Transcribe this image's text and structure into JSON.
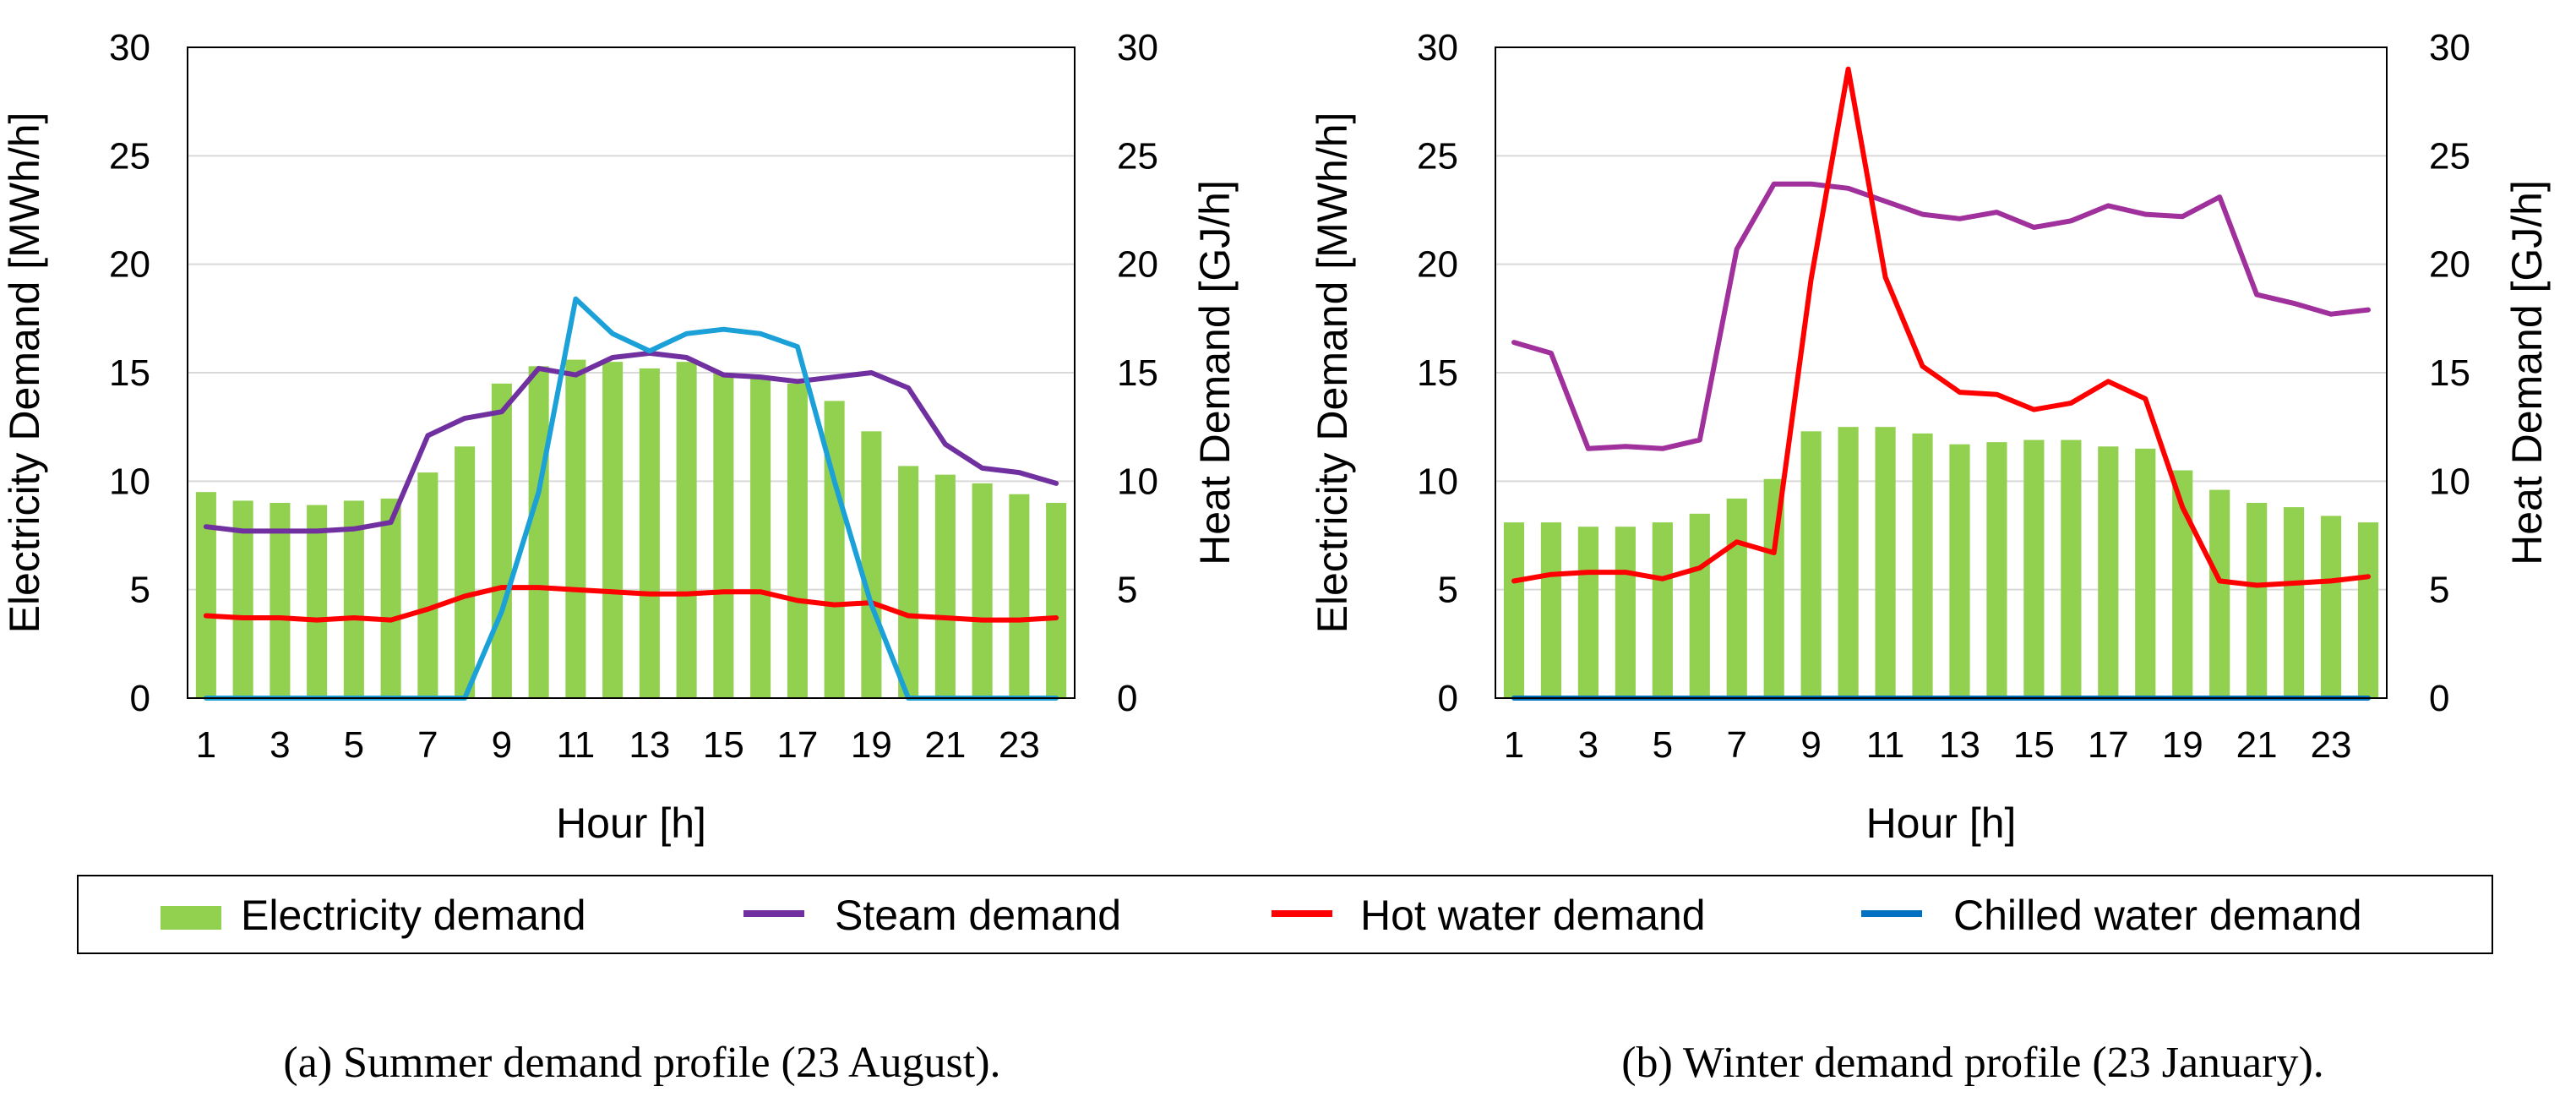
{
  "chart_data": [
    {
      "type": "bar",
      "panel": "a",
      "caption": "(a) Summer demand profile (23 August).",
      "xlabel": "Hour [h]",
      "ylabel_left": "Electricity Demand [MWh/h]",
      "ylabel_right": "Heat Demand [GJ/h]",
      "ylim_left": [
        0,
        30
      ],
      "ylim_right": [
        0,
        30
      ],
      "yticks": [
        "0",
        "5",
        "10",
        "15",
        "20",
        "25",
        "30"
      ],
      "xtick_labels": [
        "1",
        "3",
        "5",
        "7",
        "9",
        "11",
        "13",
        "15",
        "17",
        "19",
        "21",
        "23"
      ],
      "categories": [
        1,
        2,
        3,
        4,
        5,
        6,
        7,
        8,
        9,
        10,
        11,
        12,
        13,
        14,
        15,
        16,
        17,
        18,
        19,
        20,
        21,
        22,
        23,
        24
      ],
      "series": [
        {
          "name": "Electricity demand",
          "kind": "bar",
          "axis": "left",
          "color": "#92D050",
          "values": [
            9.5,
            9.1,
            9.0,
            8.9,
            9.1,
            9.2,
            10.4,
            11.6,
            14.5,
            15.3,
            15.6,
            15.5,
            15.2,
            15.5,
            15.0,
            14.8,
            14.5,
            13.7,
            12.3,
            10.7,
            10.3,
            9.9,
            9.4,
            9.0
          ]
        },
        {
          "name": "Steam demand",
          "kind": "line",
          "axis": "right",
          "color": "#7030A0",
          "values": [
            7.9,
            7.7,
            7.7,
            7.7,
            7.8,
            8.1,
            12.1,
            12.9,
            13.2,
            15.2,
            14.9,
            15.7,
            15.9,
            15.7,
            14.9,
            14.8,
            14.6,
            14.8,
            15.0,
            14.3,
            11.7,
            10.6,
            10.4,
            9.9
          ]
        },
        {
          "name": "Hot water demand",
          "kind": "line",
          "axis": "right",
          "color": "#FF0000",
          "values": [
            3.8,
            3.7,
            3.7,
            3.6,
            3.7,
            3.6,
            4.1,
            4.7,
            5.1,
            5.1,
            5.0,
            4.9,
            4.8,
            4.8,
            4.9,
            4.9,
            4.5,
            4.3,
            4.4,
            3.8,
            3.7,
            3.6,
            3.6,
            3.7
          ]
        },
        {
          "name": "Chilled water demand",
          "kind": "line",
          "axis": "right",
          "color": "#1BA1D8",
          "values": [
            0,
            0,
            0,
            0,
            0,
            0,
            0,
            0,
            4.0,
            9.5,
            18.4,
            16.8,
            16.0,
            16.8,
            17.0,
            16.8,
            16.2,
            10.0,
            4.3,
            0,
            0,
            0,
            0,
            0
          ]
        }
      ]
    },
    {
      "type": "bar",
      "panel": "b",
      "caption": "(b) Winter demand profile (23 January).",
      "xlabel": "Hour [h]",
      "ylabel_left": "Electricity Demand [MWh/h]",
      "ylabel_right": "Heat Demand [GJ/h]",
      "ylim_left": [
        0,
        30
      ],
      "ylim_right": [
        0,
        30
      ],
      "yticks": [
        "0",
        "5",
        "10",
        "15",
        "20",
        "25",
        "30"
      ],
      "xtick_labels": [
        "1",
        "3",
        "5",
        "7",
        "9",
        "11",
        "13",
        "15",
        "17",
        "19",
        "21",
        "23"
      ],
      "categories": [
        1,
        2,
        3,
        4,
        5,
        6,
        7,
        8,
        9,
        10,
        11,
        12,
        13,
        14,
        15,
        16,
        17,
        18,
        19,
        20,
        21,
        22,
        23,
        24
      ],
      "series": [
        {
          "name": "Electricity demand",
          "kind": "bar",
          "axis": "left",
          "color": "#92D050",
          "values": [
            8.1,
            8.1,
            7.9,
            7.9,
            8.1,
            8.5,
            9.2,
            10.1,
            12.3,
            12.5,
            12.5,
            12.2,
            11.7,
            11.8,
            11.9,
            11.9,
            11.6,
            11.5,
            10.5,
            9.6,
            9.0,
            8.8,
            8.4,
            8.1
          ]
        },
        {
          "name": "Steam demand",
          "kind": "line",
          "axis": "right",
          "color": "#A0309C",
          "values": [
            16.4,
            15.9,
            11.5,
            11.6,
            11.5,
            11.9,
            20.7,
            23.7,
            23.7,
            23.5,
            22.9,
            22.3,
            22.1,
            22.4,
            21.7,
            22.0,
            22.7,
            22.3,
            22.2,
            23.1,
            18.6,
            18.2,
            17.7,
            17.9
          ]
        },
        {
          "name": "Hot water demand",
          "kind": "line",
          "axis": "right",
          "color": "#FF0000",
          "values": [
            5.4,
            5.7,
            5.8,
            5.8,
            5.5,
            6.0,
            7.2,
            6.7,
            19.3,
            29.0,
            19.4,
            15.3,
            14.1,
            14.0,
            13.3,
            13.6,
            14.6,
            13.8,
            8.8,
            5.4,
            5.2,
            5.3,
            5.4,
            5.6
          ]
        },
        {
          "name": "Chilled water demand",
          "kind": "line",
          "axis": "right",
          "color": "#0070C0",
          "values": [
            0,
            0,
            0,
            0,
            0,
            0,
            0,
            0,
            0,
            0,
            0,
            0,
            0,
            0,
            0,
            0,
            0,
            0,
            0,
            0,
            0,
            0,
            0,
            0
          ]
        }
      ]
    }
  ],
  "legend": {
    "items": [
      {
        "label": "Electricity demand",
        "color": "#92D050",
        "marker": "bar"
      },
      {
        "label": "Steam demand",
        "color": "#7030A0",
        "marker": "line"
      },
      {
        "label": "Hot water demand",
        "color": "#FF0000",
        "marker": "line"
      },
      {
        "label": "Chilled water demand",
        "color": "#0070C0",
        "marker": "line"
      }
    ]
  }
}
